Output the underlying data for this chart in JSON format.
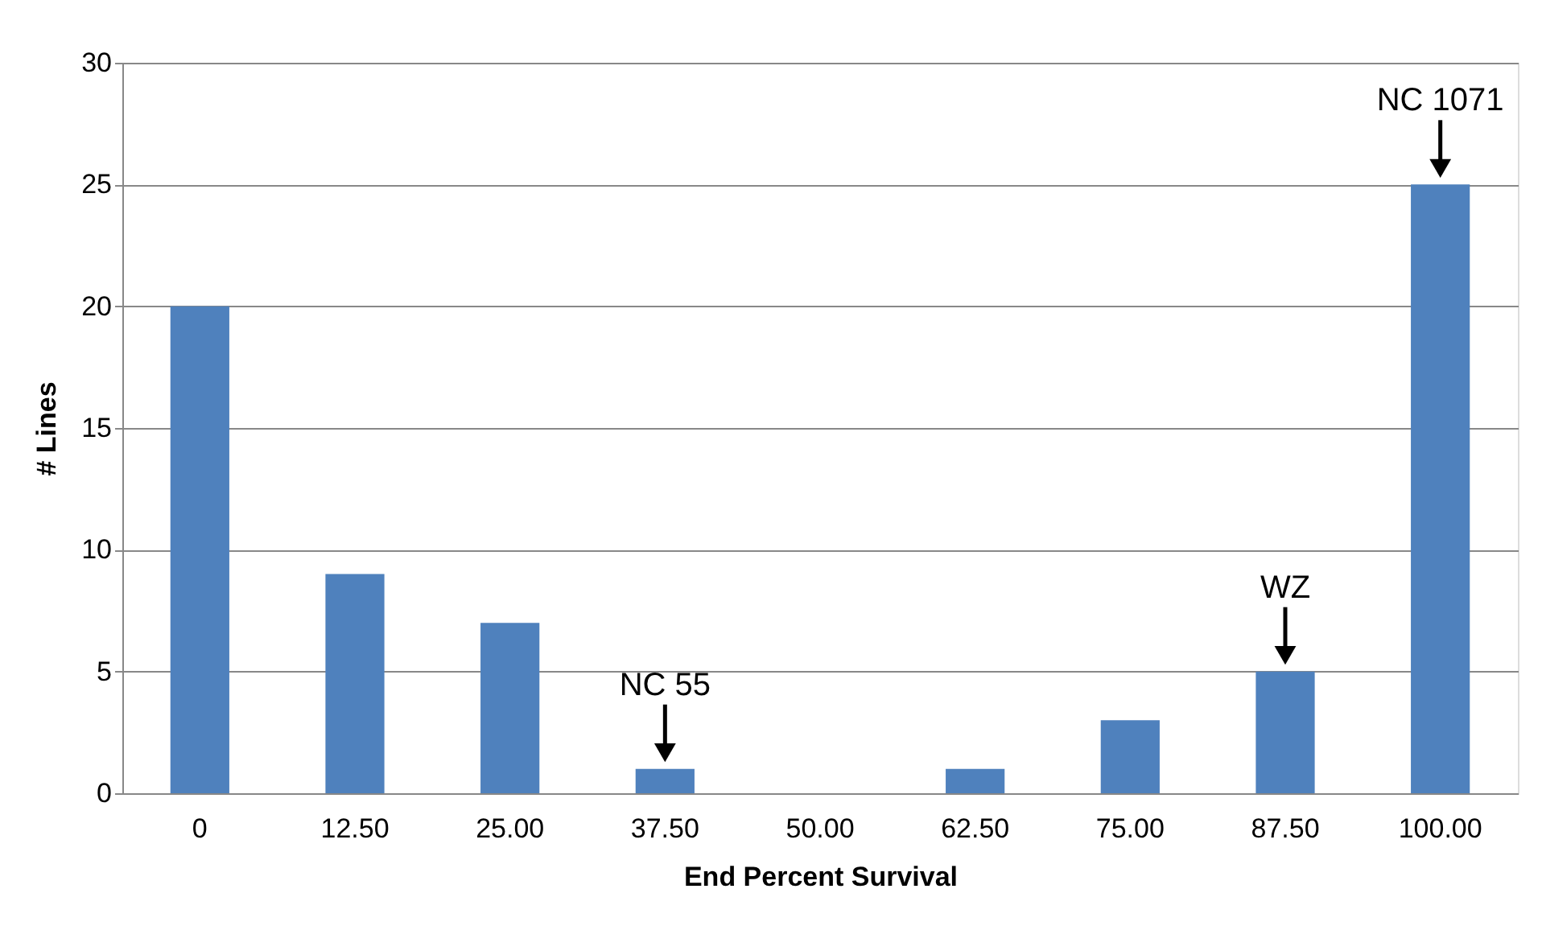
{
  "chart_data": {
    "type": "bar",
    "xlabel": "End Percent Survival",
    "ylabel": "# Lines",
    "categories": [
      "0",
      "12.50",
      "25.00",
      "37.50",
      "50.00",
      "62.50",
      "75.00",
      "87.50",
      "100.00"
    ],
    "values": [
      20,
      9,
      7,
      1,
      0,
      1,
      3,
      5,
      25
    ],
    "color": "#4f81bd",
    "ylim": [
      0,
      30
    ],
    "yticks": [
      0,
      5,
      10,
      15,
      20,
      25,
      30
    ],
    "grid": "y",
    "annotations": [
      {
        "text": "NC 55",
        "x": "37.50",
        "y": 1
      },
      {
        "text": "WZ",
        "x": "87.50",
        "y": 5
      },
      {
        "text": "NC 1071",
        "x": "100.00",
        "y": 25
      }
    ]
  }
}
